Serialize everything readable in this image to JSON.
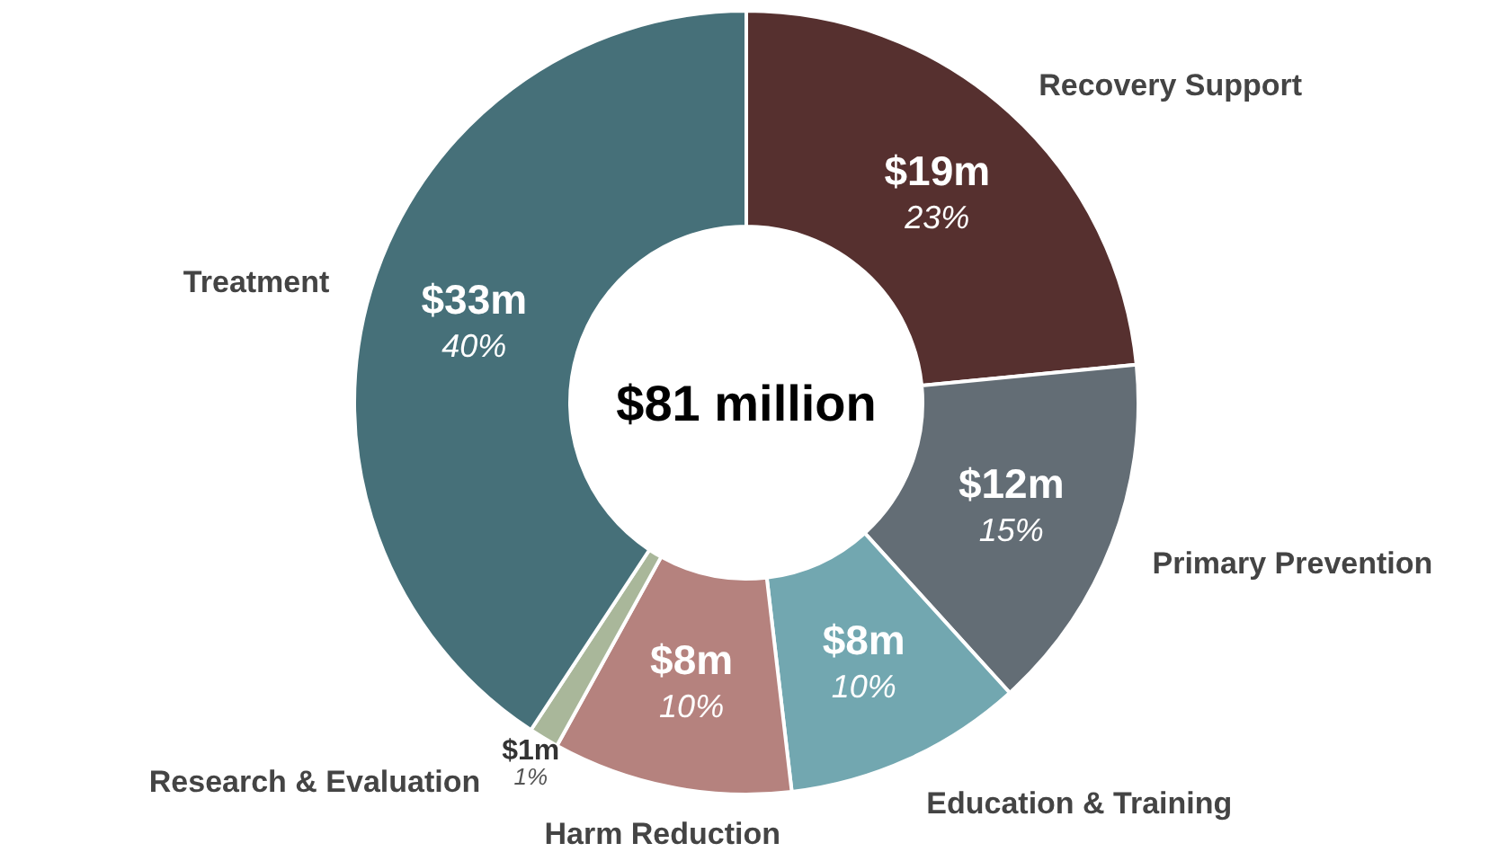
{
  "chart_data": {
    "type": "donut",
    "title": "$81 million",
    "categories": [
      "Recovery Support",
      "Primary Prevention",
      "Education & Training",
      "Harm Reduction",
      "Research & Evaluation",
      "Treatment"
    ],
    "values": [
      19,
      12,
      8,
      8,
      1,
      33
    ],
    "colors": [
      "#56302f",
      "#636d75",
      "#72a7b0",
      "#b5827e",
      "#a9b79a",
      "#467079"
    ],
    "value_labels": [
      "$19m",
      "$12m",
      "$8m",
      "$8m",
      "$1m",
      "$33m"
    ],
    "annotations": [
      {
        "text": "23%",
        "x": "Recovery Support"
      },
      {
        "text": "15%",
        "x": "Primary Prevention"
      },
      {
        "text": "10%",
        "x": "Education & Training"
      },
      {
        "text": "10%",
        "x": "Harm Reduction"
      },
      {
        "text": "1%",
        "x": "Research & Evaluation"
      },
      {
        "text": "40%",
        "x": "Treatment"
      }
    ]
  }
}
